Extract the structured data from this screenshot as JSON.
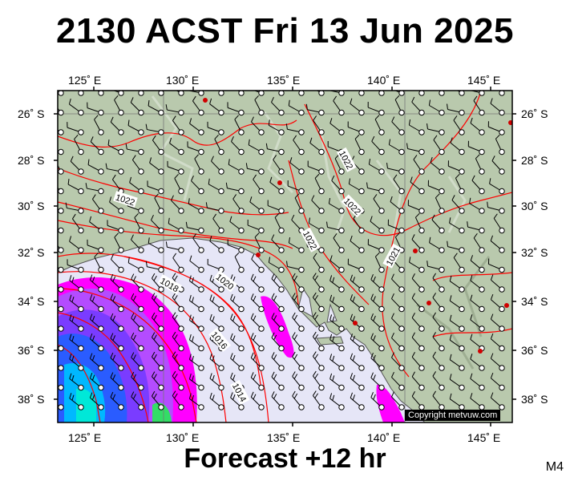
{
  "title": "2130 ACST Fri 13 Jun 2025",
  "footer": "Forecast +12 hr",
  "model_label": "M4",
  "copyright": "Copyright metvuw.com",
  "lon_labels": [
    "125˚ E",
    "130˚ E",
    "135˚ E",
    "140˚ E",
    "145˚ E"
  ],
  "lat_labels": [
    "26˚ S",
    "28˚ S",
    "30˚ S",
    "32˚ S",
    "34˚ S",
    "36˚ S",
    "38˚ S"
  ],
  "isobar_labels": [
    "1022",
    "1022",
    "1022",
    "1022",
    "1021",
    "1020",
    "1018",
    "1016",
    "1014"
  ],
  "colors": {
    "land": "#b9c9ad",
    "sea": "#e6e6f7",
    "isobar": "#ff0000",
    "rain_magenta": "#ff00ff",
    "rain_purple": "#8a2be2",
    "rain_blue": "#1e5cff",
    "rain_cyan": "#00c8ff"
  }
}
